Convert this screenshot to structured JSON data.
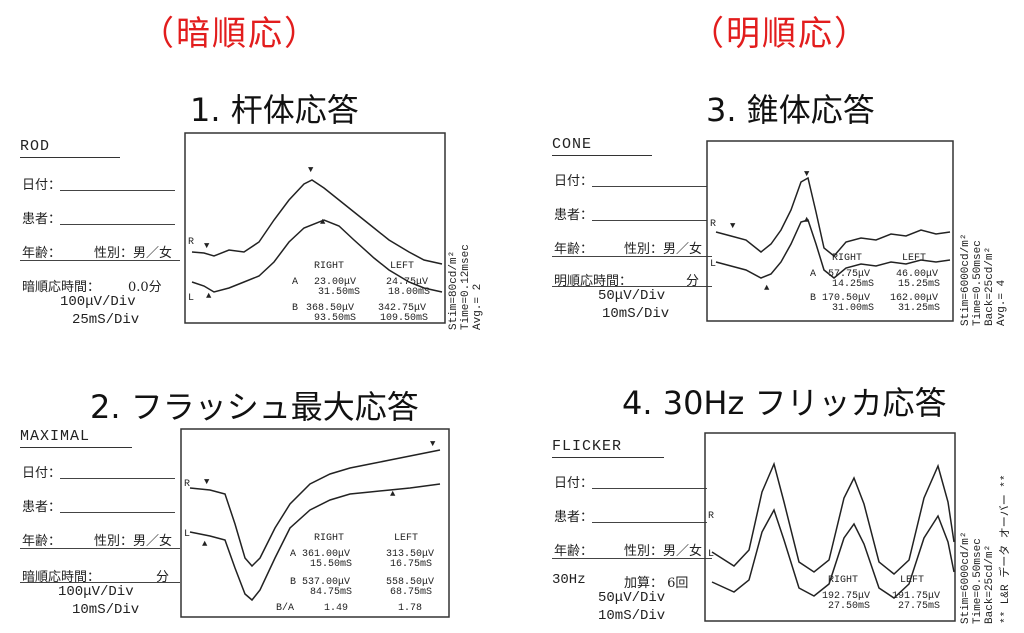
{
  "headings": {
    "dark": "（暗順応）",
    "light": "（明順応）"
  },
  "panels": [
    {
      "id": "p1",
      "title": "1.  杆体応答",
      "label": "ROD",
      "date": "日付：",
      "patient": "患者：",
      "age": "年齢：",
      "sex": "性別：男／女",
      "extra_label": "暗順応時間：",
      "extra_value": "0.0分",
      "div1": "100μV/Div",
      "div2": "25mS/Div",
      "stim": "Stim=80cd/m²",
      "time": "Time=0.12msec",
      "avg": "Avg.= 2",
      "right_h": "RIGHT",
      "left_h": "LEFT",
      "rows": [
        [
          "A",
          "23.00μV",
          "31.50mS",
          "24.75μV",
          "18.00mS"
        ],
        [
          "B",
          "368.50μV",
          "93.50mS",
          "342.75μV",
          "109.50mS"
        ]
      ]
    },
    {
      "id": "p2",
      "title": "2. フラッシュ最大応答",
      "label": "MAXIMAL",
      "date": "日付：",
      "patient": "患者：",
      "age": "年齢：",
      "sex": "性別：男／女",
      "extra_label": "暗順応時間：",
      "extra_value": "分",
      "div1": "100μV/Div",
      "div2": "10mS/Div",
      "right_h": "RIGHT",
      "left_h": "LEFT",
      "rows": [
        [
          "A",
          "361.00μV",
          "15.50mS",
          "313.50μV",
          "16.75mS"
        ],
        [
          "B",
          "537.00μV",
          "84.75mS",
          "558.50μV",
          "68.75mS"
        ],
        [
          "B/A",
          "1.49",
          "",
          "1.78",
          ""
        ]
      ]
    },
    {
      "id": "p3",
      "title": "3. 錐体応答",
      "label": "CONE",
      "date": "日付：",
      "patient": "患者：",
      "age": "年齢：",
      "sex": "性別：男／女",
      "extra_label": "明順応時間：",
      "extra_value": "分",
      "div1": "50μV/Div",
      "div2": "10mS/Div",
      "stim": "Stim=6000cd/m²",
      "time": "Time=0.50msec",
      "back": "Back=25cd/m²",
      "avg": "Avg.= 4",
      "right_h": "RIGHT",
      "left_h": "LEFT",
      "rows": [
        [
          "A",
          "57.75μV",
          "14.25mS",
          "46.00μV",
          "15.25mS"
        ],
        [
          "B",
          "170.50μV",
          "31.00mS",
          "162.00μV",
          "31.25mS"
        ]
      ]
    },
    {
      "id": "p4",
      "title": "4. 30Hz フリッカ応答",
      "label": "FLICKER",
      "date": "日付：",
      "patient": "患者：",
      "age": "年齢：",
      "sex": "性別：男／女",
      "extra_label": "30Hz",
      "extra_value": "加算： 6回",
      "div1": "50μV/Div",
      "div2": "10mS/Div",
      "stim": "Stim=6000cd/m²",
      "time": "Time=0.50msec",
      "back": "Back=25cd/m²",
      "note": "** L&R データ オーバー **",
      "right_h": "RIGHT",
      "left_h": "LEFT",
      "rows": [
        [
          "",
          "192.75μV",
          "27.50mS",
          "191.75μV",
          "27.75mS"
        ]
      ]
    }
  ],
  "chart_data": [
    {
      "type": "line",
      "panel": "1. 杆体応答",
      "xlabel": "",
      "ylabel": "",
      "series": [
        {
          "name": "R",
          "x": [
            0,
            10,
            20,
            30,
            40,
            50,
            60,
            70,
            80,
            90,
            100,
            110,
            120,
            130,
            140,
            150,
            160,
            170,
            180,
            190,
            200,
            210,
            220,
            230,
            240
          ],
          "y": [
            0,
            0,
            -5,
            -8,
            0,
            40,
            110,
            180,
            230,
            250,
            240,
            220,
            200,
            180,
            160,
            140,
            120,
            100,
            80,
            60,
            40,
            20,
            10,
            0,
            0
          ]
        },
        {
          "name": "L",
          "x": [
            0,
            10,
            20,
            30,
            40,
            50,
            60,
            70,
            80,
            90,
            100,
            110,
            120,
            130,
            140,
            150,
            160,
            170,
            180,
            190,
            200,
            210,
            220,
            230,
            240
          ],
          "y": [
            0,
            -5,
            -10,
            -12,
            -5,
            20,
            80,
            150,
            200,
            210,
            200,
            185,
            170,
            150,
            130,
            110,
            90,
            70,
            55,
            40,
            25,
            15,
            5,
            0,
            0
          ]
        }
      ]
    },
    {
      "type": "line",
      "panel": "2. フラッシュ最大応答",
      "xlabel": "",
      "ylabel": "",
      "series": [
        {
          "name": "R",
          "x": [
            0,
            10,
            15,
            20,
            25,
            30,
            40,
            50,
            60,
            70,
            80,
            90,
            100
          ],
          "y": [
            0,
            -40,
            -200,
            -360,
            -300,
            -150,
            60,
            150,
            180,
            200,
            210,
            215,
            220
          ]
        },
        {
          "name": "L",
          "x": [
            0,
            10,
            15,
            20,
            25,
            30,
            40,
            50,
            60,
            70,
            80,
            90,
            100
          ],
          "y": [
            0,
            -30,
            -180,
            -310,
            -260,
            -120,
            20,
            100,
            130,
            150,
            160,
            165,
            170
          ]
        }
      ]
    },
    {
      "type": "line",
      "panel": "3. 錐体応答",
      "xlabel": "",
      "ylabel": "",
      "series": [
        {
          "name": "R",
          "x": [
            0,
            5,
            10,
            14,
            20,
            25,
            31,
            35,
            40,
            50,
            60,
            70,
            80,
            90,
            100
          ],
          "y": [
            0,
            -10,
            -20,
            -57,
            0,
            60,
            113,
            50,
            -20,
            10,
            0,
            20,
            10,
            15,
            10
          ]
        },
        {
          "name": "L",
          "x": [
            0,
            5,
            10,
            15,
            20,
            25,
            31,
            35,
            40,
            50,
            60,
            70,
            80,
            90,
            100
          ],
          "y": [
            0,
            -10,
            -20,
            -46,
            0,
            60,
            116,
            40,
            -20,
            5,
            0,
            10,
            5,
            10,
            5
          ]
        }
      ]
    },
    {
      "type": "line",
      "panel": "4. 30Hz フリッカ応答",
      "xlabel": "",
      "ylabel": "",
      "series": [
        {
          "name": "R",
          "x": [
            0,
            10,
            20,
            27.5,
            35,
            45,
            55,
            60,
            68,
            75,
            85,
            95,
            100
          ],
          "y": [
            0,
            -40,
            -80,
            190,
            -80,
            -40,
            -80,
            190,
            -80,
            -40,
            -80,
            190,
            -60
          ]
        },
        {
          "name": "L",
          "x": [
            0,
            10,
            20,
            27.75,
            35,
            45,
            55,
            60,
            68,
            75,
            85,
            95,
            100
          ],
          "y": [
            0,
            -40,
            -80,
            180,
            -80,
            -40,
            -80,
            180,
            -80,
            -40,
            -80,
            180,
            -60
          ]
        }
      ]
    }
  ]
}
